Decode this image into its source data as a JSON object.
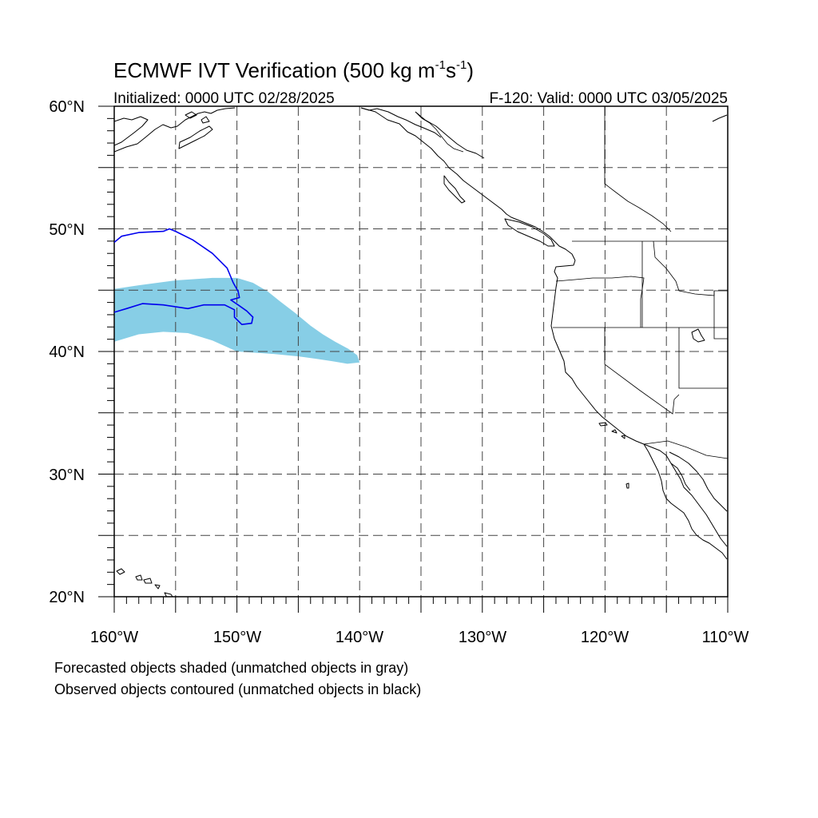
{
  "title": {
    "main": "ECMWF IVT Verification (500 kg m",
    "sup1": "-1",
    "mid": "s",
    "sup2": "-1",
    "end": ")"
  },
  "subtitle_left": "Initialized: 0000 UTC 02/28/2025",
  "subtitle_right": "F-120: Valid: 0000 UTC 03/05/2025",
  "map": {
    "projection": "cylindrical-equidistant",
    "lon_range": [
      -160,
      -110
    ],
    "lat_range": [
      20,
      60
    ],
    "lon_tick_labels": [
      "160°W",
      "150°W",
      "140°W",
      "130°W",
      "120°W",
      "110°W"
    ],
    "lat_tick_labels": [
      "20°N",
      "30°N",
      "40°N",
      "50°N",
      "60°N"
    ],
    "grid_spacing_deg": 5,
    "grid_style": "dashed",
    "forecast_object_color": "#87CEE6",
    "observed_object_color": "#0000EE"
  },
  "objects": {
    "forecast_shaded": {
      "name": "Forecasted object (matched)",
      "lonlat": [
        [
          -160,
          45.1
        ],
        [
          -158,
          45.4
        ],
        [
          -155,
          45.8
        ],
        [
          -152,
          46
        ],
        [
          -150,
          46
        ],
        [
          -148.7,
          45.6
        ],
        [
          -147.5,
          44.9
        ],
        [
          -146.5,
          44.1
        ],
        [
          -145.2,
          43.1
        ],
        [
          -144,
          42.1
        ],
        [
          -143,
          41.4
        ],
        [
          -142,
          40.8
        ],
        [
          -140.9,
          40.2
        ],
        [
          -140.2,
          39.7
        ],
        [
          -140,
          39.1
        ],
        [
          -141,
          39
        ],
        [
          -142.2,
          39.2
        ],
        [
          -143.5,
          39.4
        ],
        [
          -145,
          39.6
        ],
        [
          -147,
          39.8
        ],
        [
          -150,
          40
        ],
        [
          -152,
          40.9
        ],
        [
          -154,
          41.5
        ],
        [
          -156,
          41.6
        ],
        [
          -158,
          41.4
        ],
        [
          -160,
          40.8
        ]
      ]
    },
    "observed_contour": {
      "name": "Observed object (matched)",
      "lonlat": [
        [
          -160,
          48.9
        ],
        [
          -159.4,
          49.4
        ],
        [
          -158,
          49.7
        ],
        [
          -156,
          49.8
        ],
        [
          -155.5,
          50
        ],
        [
          -155,
          49.8
        ],
        [
          -153.6,
          49.1
        ],
        [
          -152,
          48
        ],
        [
          -150.8,
          46.8
        ],
        [
          -150.3,
          45.6
        ],
        [
          -149.9,
          44.9
        ],
        [
          -149.8,
          44.4
        ],
        [
          -150.5,
          44.2
        ],
        [
          -149.9,
          43.8
        ],
        [
          -149.2,
          43.3
        ],
        [
          -148.7,
          42.8
        ],
        [
          -148.8,
          42.3
        ],
        [
          -149.6,
          42.2
        ],
        [
          -150.2,
          42.8
        ],
        [
          -150.2,
          43.4
        ],
        [
          -151,
          43.8
        ],
        [
          -152.7,
          43.8
        ],
        [
          -154,
          43.5
        ],
        [
          -156,
          43.8
        ],
        [
          -157.7,
          43.9
        ],
        [
          -159,
          43.5
        ],
        [
          -160,
          43.2
        ]
      ]
    }
  },
  "footnotes": [
    "Forecasted objects shaded (unmatched objects in gray)",
    "Observed objects contoured (unmatched objects in black)"
  ]
}
